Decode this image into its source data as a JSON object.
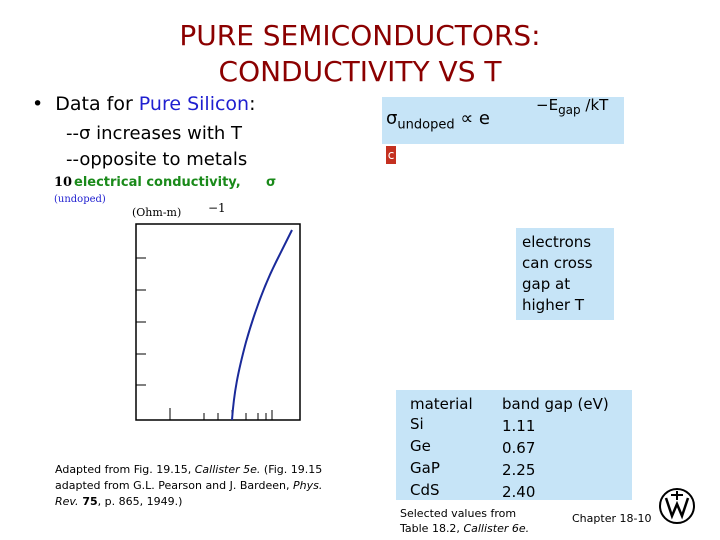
{
  "title_line1": "PURE SEMICONDUCTORS:",
  "title_line2": "CONDUCTIVITY VS T",
  "bullet": {
    "prefix": "Data for ",
    "highlight": "Pure Silicon",
    "suffix": ":"
  },
  "sub1": {
    "dash": "--",
    "sigma": "σ",
    "text": " increases with T"
  },
  "sub2": "--opposite to metals",
  "formula": {
    "sigma": "σ",
    "sub": "undoped",
    "prop": " ∝ e",
    "minus": "−",
    "E": "E",
    "gap": "gap",
    "over": " /kT"
  },
  "glyph": "c",
  "electrons_box": [
    "electrons",
    "can cross",
    "gap at",
    "higher T"
  ],
  "table": {
    "headers": [
      "material",
      "band gap (eV)"
    ],
    "rows": [
      [
        "Si",
        "1.11"
      ],
      [
        "Ge",
        "0.67"
      ],
      [
        "GaP",
        "2.25"
      ],
      [
        "CdS",
        "2.40"
      ]
    ]
  },
  "caption": {
    "l1a": "Adapted from Fig. 19.15, ",
    "l1b": "Callister 5e.",
    "l1c": "  (Fig. 19.15",
    "l2a": "adapted from G.L. Pearson and J. Bardeen, ",
    "l2b": "Phys.",
    "l3a": "Rev.",
    "l3b": " 75",
    "l3c": ", p. 865, 1949.)"
  },
  "selected": {
    "l1": "Selected values from",
    "l2a": "Table 18.2, ",
    "l2b": "Callister 6e."
  },
  "chapter": "Chapter 18-10",
  "plot": {
    "ylabel_left": "10",
    "ylabel_main": "electrical conductivity,",
    "sigma": "σ",
    "undoped": "(undoped)",
    "units": "(Ohm-m)",
    "exp": "−1"
  },
  "chart_data": {
    "type": "line",
    "title": "",
    "xlabel": "",
    "ylabel": "electrical conductivity, σ (Ohm-m)−1",
    "series": [
      {
        "values_shape": "steeply rising curve"
      }
    ]
  },
  "colors": {
    "title": "#8b0000",
    "highlight": "#1f1fd0",
    "box": "#c6e4f7",
    "curve": "#1a2a9a",
    "green": "#1a8a1a"
  }
}
